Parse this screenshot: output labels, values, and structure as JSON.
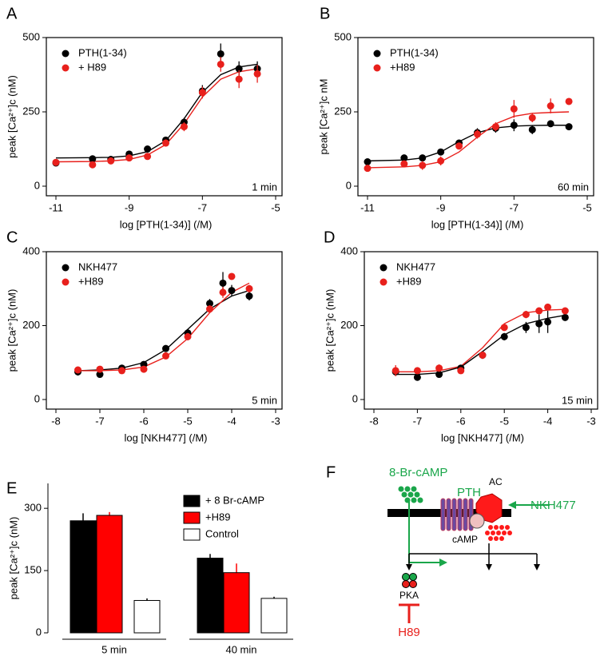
{
  "chart_data": [
    {
      "panel": "A",
      "type": "scatter",
      "xlabel": "log [PTH(1-34)] (/M)",
      "ylabel": "peak [Ca²⁺]c (nM)",
      "annotation": "1 min",
      "xlim": [
        -11,
        -5
      ],
      "ylim": [
        0,
        500
      ],
      "xticks": [
        -11,
        -9,
        -7,
        -5
      ],
      "yticks": [
        0,
        250,
        500
      ],
      "series": [
        {
          "name": "PTH(1-34)",
          "color": "#000000",
          "x": [
            -11,
            -10,
            -9.5,
            -9,
            -8.5,
            -8,
            -7.5,
            -7,
            -6.5,
            -6,
            -5.5
          ],
          "values": [
            78,
            92,
            90,
            108,
            125,
            155,
            215,
            320,
            445,
            395,
            395
          ],
          "errors": [
            10,
            5,
            5,
            8,
            8,
            10,
            15,
            20,
            35,
            25,
            25
          ]
        },
        {
          "name": "+ H89",
          "color": "#e8201c",
          "x": [
            -11,
            -10,
            -9.5,
            -9,
            -8.5,
            -8,
            -7.5,
            -7,
            -6.5,
            -6,
            -5.5
          ],
          "values": [
            80,
            72,
            85,
            95,
            100,
            145,
            200,
            315,
            410,
            360,
            378
          ],
          "errors": [
            8,
            5,
            5,
            8,
            10,
            12,
            15,
            20,
            25,
            30,
            30
          ]
        }
      ],
      "fits": [
        {
          "color": "#000000",
          "x": [
            -11,
            -10,
            -9.5,
            -9,
            -8.5,
            -8,
            -7.5,
            -7,
            -6.5,
            -6,
            -5.5
          ],
          "values": [
            95,
            96,
            97,
            102,
            116,
            153,
            227,
            316,
            375,
            401,
            410
          ]
        },
        {
          "color": "#e8201c",
          "x": [
            -11,
            -10,
            -9.5,
            -9,
            -8.5,
            -8,
            -7.5,
            -7,
            -6.5,
            -6,
            -5.5
          ],
          "values": [
            82,
            83,
            85,
            90,
            105,
            140,
            210,
            300,
            360,
            385,
            395
          ]
        }
      ]
    },
    {
      "panel": "B",
      "type": "scatter",
      "xlabel": "log [PTH(1-34)] (/M)",
      "ylabel": "peak [Ca²⁺]c nM",
      "annotation": "60 min",
      "xlim": [
        -11,
        -5
      ],
      "ylim": [
        0,
        500
      ],
      "xticks": [
        -11,
        -9,
        -7,
        -5
      ],
      "yticks": [
        0,
        250,
        500
      ],
      "series": [
        {
          "name": "PTH(1-34)",
          "color": "#000000",
          "x": [
            -11,
            -10,
            -9.5,
            -9,
            -8.5,
            -8,
            -7.5,
            -7,
            -6.5,
            -6,
            -5.5
          ],
          "values": [
            82,
            95,
            95,
            115,
            145,
            180,
            195,
            205,
            190,
            210,
            200
          ],
          "errors": [
            5,
            5,
            10,
            10,
            10,
            15,
            15,
            20,
            15,
            10,
            10
          ]
        },
        {
          "name": "+H89",
          "color": "#e8201c",
          "x": [
            -11,
            -10,
            -9.5,
            -9,
            -8.5,
            -8,
            -7.5,
            -7,
            -6.5,
            -6,
            -5.5
          ],
          "values": [
            60,
            75,
            70,
            85,
            135,
            175,
            200,
            260,
            230,
            270,
            285
          ],
          "errors": [
            5,
            5,
            15,
            15,
            10,
            15,
            15,
            30,
            15,
            25,
            5
          ]
        }
      ],
      "fits": [
        {
          "color": "#000000",
          "x": [
            -11,
            -10,
            -9.5,
            -9,
            -8.5,
            -8,
            -7.5,
            -7,
            -6.5,
            -6,
            -5.5
          ],
          "values": [
            85,
            88,
            95,
            115,
            150,
            180,
            196,
            202,
            204,
            205,
            205
          ]
        },
        {
          "color": "#e8201c",
          "x": [
            -11,
            -10,
            -9.5,
            -9,
            -8.5,
            -8,
            -7.5,
            -7,
            -6.5,
            -6,
            -5.5
          ],
          "values": [
            62,
            65,
            70,
            82,
            115,
            165,
            210,
            235,
            245,
            248,
            250
          ]
        }
      ]
    },
    {
      "panel": "C",
      "type": "scatter",
      "xlabel": "log [NKH477] (/M)",
      "ylabel": "peak [Ca²⁺]c (nM)",
      "annotation": "5 min",
      "xlim": [
        -8,
        -3
      ],
      "ylim": [
        0,
        400
      ],
      "xticks": [
        -8,
        -7,
        -6,
        -5,
        -4,
        -3
      ],
      "yticks": [
        0,
        200,
        400
      ],
      "series": [
        {
          "name": "NKH477",
          "color": "#000000",
          "x": [
            -7.5,
            -7,
            -6.5,
            -6,
            -5.5,
            -5,
            -4.5,
            -4.2,
            -4,
            -3.6
          ],
          "values": [
            75,
            68,
            85,
            95,
            138,
            180,
            260,
            315,
            295,
            280
          ],
          "errors": [
            10,
            5,
            5,
            5,
            8,
            10,
            12,
            30,
            15,
            12
          ]
        },
        {
          "name": "+H89",
          "color": "#e8201c",
          "x": [
            -7.5,
            -7,
            -6.5,
            -6,
            -5.5,
            -5,
            -4.5,
            -4.2,
            -4,
            -3.6
          ],
          "values": [
            80,
            82,
            78,
            82,
            118,
            170,
            245,
            290,
            333,
            300
          ],
          "errors": [
            5,
            5,
            5,
            5,
            8,
            10,
            10,
            15,
            5,
            10
          ]
        }
      ],
      "fits": [
        {
          "color": "#000000",
          "x": [
            -7.5,
            -7,
            -6.5,
            -6,
            -5.5,
            -5,
            -4.5,
            -4,
            -3.6
          ],
          "values": [
            78,
            80,
            85,
            100,
            135,
            190,
            245,
            280,
            295
          ]
        },
        {
          "color": "#e8201c",
          "x": [
            -7.5,
            -7,
            -6.5,
            -6,
            -5.5,
            -5,
            -4.5,
            -4,
            -3.6
          ],
          "values": [
            78,
            78,
            80,
            88,
            115,
            165,
            235,
            290,
            315
          ]
        }
      ]
    },
    {
      "panel": "D",
      "type": "scatter",
      "xlabel": "log [NKH477] (/M)",
      "ylabel": "peak [Ca²⁺]c (nM)",
      "annotation": "15 min",
      "xlim": [
        -8,
        -3
      ],
      "ylim": [
        0,
        400
      ],
      "xticks": [
        -8,
        -7,
        -6,
        -5,
        -4,
        -3
      ],
      "yticks": [
        0,
        200,
        400
      ],
      "series": [
        {
          "name": "NKH477",
          "color": "#000000",
          "x": [
            -7.5,
            -7,
            -6.5,
            -6,
            -5.5,
            -5,
            -4.5,
            -4.2,
            -4,
            -3.6
          ],
          "values": [
            75,
            60,
            68,
            85,
            120,
            170,
            195,
            205,
            210,
            222
          ],
          "errors": [
            10,
            5,
            8,
            5,
            10,
            10,
            15,
            25,
            30,
            5
          ]
        },
        {
          "name": "+H89",
          "color": "#e8201c",
          "x": [
            -7.5,
            -7,
            -6.5,
            -6,
            -5.5,
            -5,
            -4.5,
            -4.2,
            -4,
            -3.6
          ],
          "values": [
            78,
            78,
            85,
            78,
            120,
            195,
            230,
            240,
            250,
            240
          ],
          "errors": [
            15,
            5,
            10,
            5,
            10,
            5,
            10,
            5,
            5,
            5
          ]
        }
      ],
      "fits": [
        {
          "color": "#000000",
          "x": [
            -7.5,
            -7,
            -6.5,
            -6,
            -5.5,
            -5,
            -4.5,
            -4,
            -3.6
          ],
          "values": [
            68,
            68,
            72,
            88,
            130,
            175,
            205,
            220,
            228
          ]
        },
        {
          "color": "#e8201c",
          "x": [
            -7.5,
            -7,
            -6.5,
            -6,
            -5.5,
            -5,
            -4.5,
            -4,
            -3.6
          ],
          "values": [
            75,
            75,
            78,
            90,
            140,
            205,
            235,
            242,
            244
          ]
        }
      ]
    },
    {
      "panel": "E",
      "type": "bar",
      "ylabel": "peak [Ca²⁺]c (nM)",
      "categories": [
        "5 min",
        "40 min"
      ],
      "ylim": [
        0,
        360
      ],
      "yticks": [
        0,
        150,
        300
      ],
      "series": [
        {
          "name": "+ 8 Br-cAMP",
          "color": "#000000",
          "values": [
            270,
            180
          ],
          "errors": [
            18,
            10
          ]
        },
        {
          "name": "+H89",
          "color": "#ff0000",
          "values": [
            283,
            145
          ],
          "errors": [
            8,
            22
          ]
        },
        {
          "name": "Control",
          "color": "#ffffff",
          "values": [
            78,
            83
          ],
          "errors": [
            5,
            4
          ]
        }
      ]
    }
  ],
  "diagram": {
    "panel": "F",
    "drug": "8-Br-cAMP",
    "receptor": "PTH",
    "enzyme": "AC",
    "activator": "NKH477",
    "messenger": "cAMP",
    "kinase": "PKA",
    "inhibitor": "H89"
  }
}
